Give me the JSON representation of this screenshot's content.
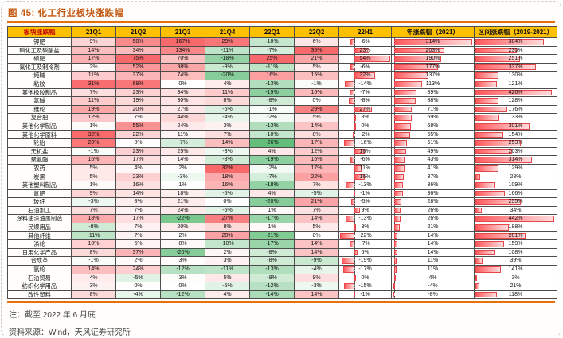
{
  "figure": {
    "title": "图 45: 化工行业板块涨跌幅",
    "note": "注：截至 2022 年 6 月底",
    "source": "资料来源：Wind，天风证券研究所"
  },
  "colors": {
    "title_text": "#C45911",
    "divider": "#E8700A",
    "header_bg": "#FFC000",
    "header_first_text": "#C00000",
    "positive_max": "#F8696B",
    "negative_max": "#63BE7B",
    "bar_dark": "#FF5A5D",
    "bar_light": "#FFDCDD"
  },
  "chart_data": {
    "type": "table",
    "title": "化工行业板块涨跌幅",
    "unit": "%",
    "columns": [
      "板块涨跌幅",
      "21Q1",
      "21Q2",
      "21Q3",
      "21Q4",
      "22Q1",
      "22Q2",
      "22H1",
      "年涨跌幅（2021）",
      "区间涨跌幅（2019-2021）"
    ],
    "notes": "前6列为季度涨跌幅色阶（红=涨，绿=跌）；22H1、年涨跌幅、区间涨跌幅三列为红色数据条",
    "rows": [
      {
        "name": "钾肥",
        "values": [
          9,
          58,
          167,
          29,
          -10,
          6,
          -6,
          314,
          384
        ]
      },
      {
        "name": "磷化工及磷酸盐",
        "values": [
          14,
          34,
          134,
          -11,
          -7,
          35,
          23,
          203,
          230
        ]
      },
      {
        "name": "磷肥",
        "values": [
          17,
          75,
          70,
          -18,
          25,
          21,
          54,
          190,
          251
        ]
      },
      {
        "name": "氟化工及制冷剂",
        "values": [
          2,
          52,
          98,
          -9,
          -11,
          5,
          -6,
          177,
          337
        ]
      },
      {
        "name": "纯碱",
        "values": [
          11,
          37,
          74,
          -20,
          16,
          15,
          32,
          137,
          130
        ]
      },
      {
        "name": "粘胶",
        "values": [
          31,
          68,
          0,
          4,
          -13,
          -1,
          -14,
          113,
          121
        ]
      },
      {
        "name": "其他橡胶制品",
        "values": [
          7,
          23,
          34,
          11,
          -19,
          16,
          -7,
          89,
          426
        ]
      },
      {
        "name": "氯碱",
        "values": [
          11,
          19,
          30,
          8,
          -8,
          0,
          -8,
          88,
          128
        ]
      },
      {
        "name": "维纶",
        "values": [
          19,
          20,
          27,
          -6,
          -1,
          29,
          27,
          71,
          176
        ]
      },
      {
        "name": "复合肥",
        "values": [
          12,
          7,
          44,
          -4,
          -2,
          5,
          3,
          69,
          133
        ]
      },
      {
        "name": "其他化学制品",
        "values": [
          1,
          55,
          24,
          3,
          -13,
          14,
          0,
          68,
          301
        ]
      },
      {
        "name": "其他化学原料",
        "values": [
          32,
          22,
          11,
          7,
          -10,
          8,
          -2,
          65,
          154
        ]
      },
      {
        "name": "轮胎",
        "values": [
          29,
          0,
          -7,
          14,
          -26,
          17,
          -16,
          51,
          253
        ]
      },
      {
        "name": "无机盐",
        "values": [
          -1,
          23,
          25,
          -3,
          4,
          12,
          16,
          49,
          203
        ]
      },
      {
        "name": "聚氨酯",
        "values": [
          16,
          17,
          14,
          -8,
          -19,
          16,
          -6,
          43,
          314
        ]
      },
      {
        "name": "农药",
        "values": [
          5,
          4,
          2,
          32,
          -2,
          17,
          11,
          41,
          129
        ]
      },
      {
        "name": "炭黑",
        "values": [
          5,
          23,
          -3,
          18,
          -7,
          22,
          16,
          37,
          28
        ]
      },
      {
        "name": "其他塑料制品",
        "values": [
          1,
          16,
          1,
          16,
          -18,
          7,
          -13,
          36,
          109
        ]
      },
      {
        "name": "氮肥",
        "values": [
          9,
          14,
          18,
          -5,
          4,
          -5,
          -1,
          36,
          166
        ]
      },
      {
        "name": "玻纤",
        "values": [
          -3,
          8,
          21,
          0,
          -20,
          21,
          -5,
          28,
          255
        ]
      },
      {
        "name": "石油加工",
        "values": [
          7,
          7,
          24,
          -5,
          1,
          7,
          9,
          26,
          34
        ]
      },
      {
        "name": "涂料油漆油墨制造",
        "values": [
          18,
          17,
          -22,
          27,
          -17,
          14,
          -13,
          26,
          442
        ]
      },
      {
        "name": "民爆用品",
        "values": [
          -8,
          7,
          20,
          8,
          1,
          5,
          3,
          21,
          188
        ]
      },
      {
        "name": "其他纤维",
        "values": [
          -11,
          7,
          2,
          20,
          -21,
          0,
          -22,
          14,
          281
        ]
      },
      {
        "name": "涤纶",
        "values": [
          10,
          6,
          8,
          -10,
          -17,
          14,
          -7,
          14,
          159
        ]
      },
      {
        "name": "日用化学产品",
        "values": [
          8,
          37,
          -20,
          2,
          -8,
          14,
          5,
          14,
          108
        ]
      },
      {
        "name": "合成革",
        "values": [
          -1,
          2,
          3,
          3,
          -8,
          -9,
          -19,
          11,
          39
        ]
      },
      {
        "name": "氨纶",
        "values": [
          14,
          24,
          -12,
          -11,
          -13,
          -4,
          -17,
          11,
          141
        ]
      },
      {
        "name": "石油贸易",
        "values": [
          4,
          -5,
          3,
          5,
          -8,
          8,
          0,
          4,
          3
        ]
      },
      {
        "name": "纺织化学用品",
        "values": [
          3,
          0,
          0,
          -5,
          -12,
          -3,
          -15,
          -4,
          21
        ]
      },
      {
        "name": "改性塑料",
        "values": [
          8,
          -4,
          -12,
          4,
          -14,
          14,
          -1,
          -8,
          118
        ]
      }
    ]
  }
}
